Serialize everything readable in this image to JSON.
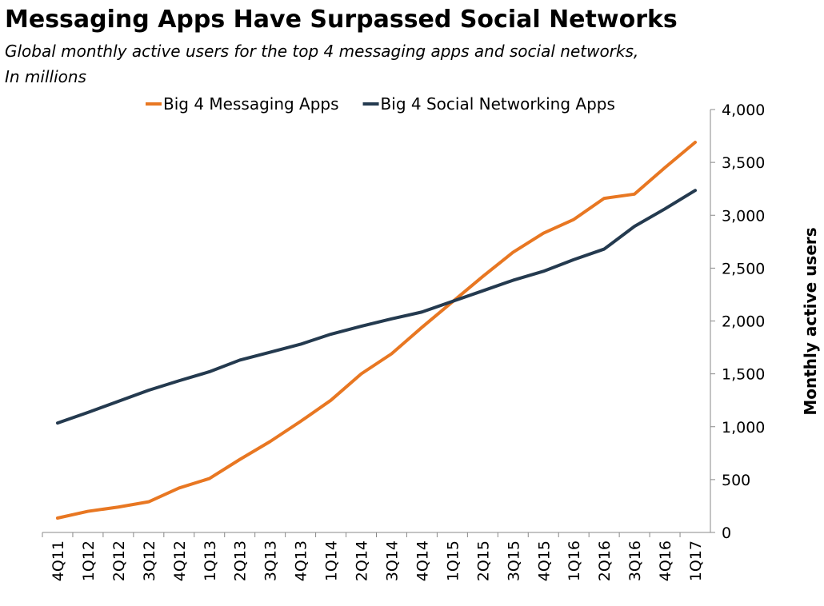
{
  "chart_data": {
    "type": "line",
    "title": "Messaging Apps Have Surpassed Social Networks",
    "subtitle": "Global monthly active users for the top 4 messaging apps and social networks,",
    "subtitle2": "In millions",
    "y_label": "Monthly active users",
    "categories": [
      "4Q11",
      "1Q12",
      "2Q12",
      "3Q12",
      "4Q12",
      "1Q13",
      "2Q13",
      "3Q13",
      "4Q13",
      "1Q14",
      "2Q14",
      "3Q14",
      "4Q14",
      "1Q15",
      "2Q15",
      "3Q15",
      "4Q15",
      "1Q16",
      "2Q16",
      "3Q16",
      "4Q16",
      "1Q17"
    ],
    "series": [
      {
        "name": "Big 4 Messaging Apps",
        "color": "#e87722",
        "values": [
          136,
          200,
          240,
          290,
          420,
          510,
          690,
          860,
          1050,
          1250,
          1500,
          1690,
          1940,
          2180,
          2420,
          2650,
          2830,
          2960,
          3160,
          3200,
          3450,
          3690
        ]
      },
      {
        "name": "Big 4 Social Networking Apps",
        "color": "#243a4f",
        "values": [
          1035,
          1135,
          1240,
          1345,
          1435,
          1520,
          1630,
          1705,
          1780,
          1875,
          1950,
          2020,
          2085,
          2185,
          2285,
          2385,
          2470,
          2580,
          2680,
          2895,
          3060,
          3235
        ]
      }
    ],
    "ylim": [
      0,
      4000
    ],
    "yticks": [
      0,
      500,
      {
        "value": 1000,
        "label": "1,000"
      },
      {
        "value": 1500,
        "label": "1,500"
      },
      {
        "value": 2000,
        "label": "2,000"
      },
      {
        "value": 2500,
        "label": "2,500"
      },
      {
        "value": 3000,
        "label": "3,000"
      },
      {
        "value": 3500,
        "label": "3,500"
      },
      {
        "value": 4000,
        "label": "4,000"
      }
    ],
    "y_axis_side": "right",
    "legend": "top"
  }
}
